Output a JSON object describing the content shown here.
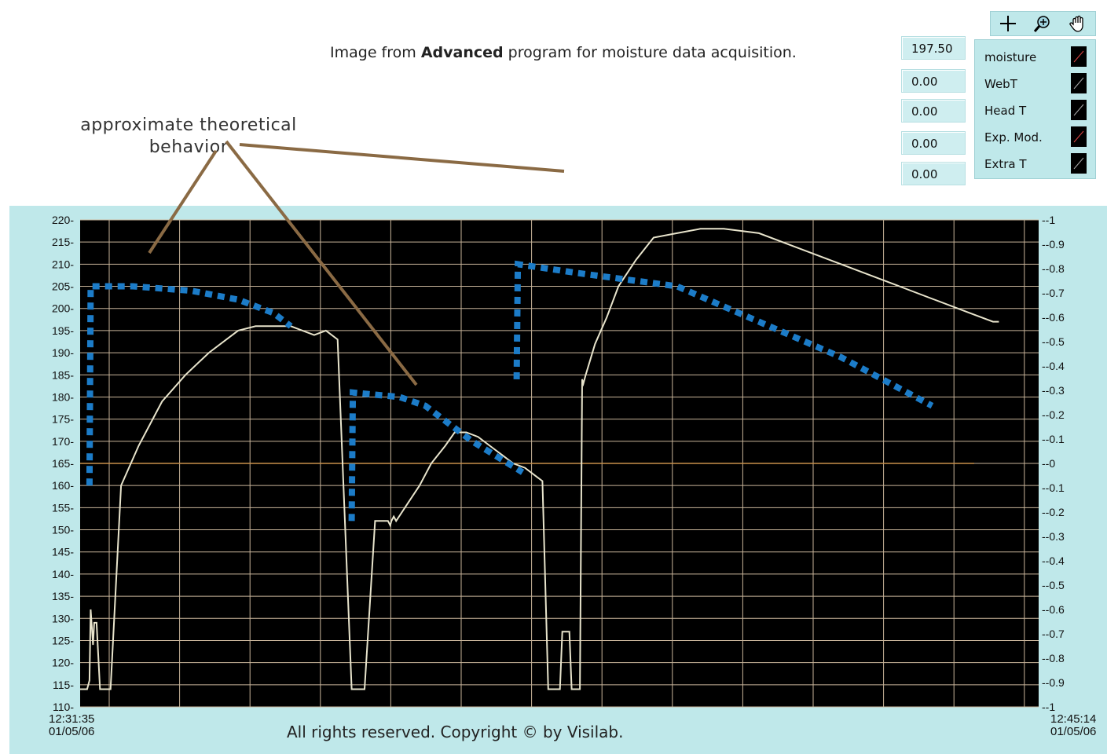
{
  "caption": {
    "prefix": "Image from ",
    "bold": "Advanced",
    "suffix": " program for moisture data acquisition."
  },
  "annotation": {
    "line1": "approximate  theoretical",
    "line2": "behavior"
  },
  "copyright": "All rights reserved. Copyright © by Visilab.",
  "readouts": [
    "197.50",
    "0.00",
    "0.00",
    "0.00",
    "0.00"
  ],
  "legend": [
    "moisture",
    "WebT",
    "Head T",
    "Exp. Mod.",
    "Extra T"
  ],
  "toolbar": {
    "tools": [
      "crosshair-icon",
      "zoom-icon",
      "hand-icon"
    ]
  },
  "colors": {
    "plot_bg": "#000000",
    "panel_bg": "#bfe8ea",
    "trace": "#e8e4cc",
    "grid": "#c8b49a",
    "zero_line": "#c8904a",
    "theory": "#1c7cc8",
    "leader": "#8a6a44"
  },
  "chart_data": {
    "type": "line",
    "x_start_label": [
      "12:31:35",
      "01/05/06"
    ],
    "x_end_label": [
      "12:45:14",
      "01/05/06"
    ],
    "x_range_seconds": [
      0,
      819
    ],
    "ylim": [
      110,
      220
    ],
    "y_ticks": [
      "220",
      "215",
      "210",
      "205",
      "200",
      "195",
      "190",
      "185",
      "180",
      "175",
      "170",
      "165",
      "160",
      "155",
      "150",
      "145",
      "140",
      "135",
      "130",
      "125",
      "120",
      "115",
      "110"
    ],
    "y2lim": [
      -1,
      1
    ],
    "y2_ticks": [
      "-1",
      "-0.9",
      "-0.8",
      "-0.7",
      "-0.6",
      "-0.5",
      "-0.4",
      "-0.3",
      "-0.2",
      "-0.1",
      "-0",
      "-0.1",
      "-0.2",
      "-0.3",
      "-0.4",
      "-0.5",
      "-0.6",
      "-0.7",
      "-0.8",
      "-0.9",
      "-1"
    ],
    "grid": true,
    "series": [
      {
        "name": "moisture",
        "x": [
          0,
          6,
          8,
          9,
          11,
          12,
          13,
          14,
          17,
          20,
          26,
          35,
          50,
          70,
          90,
          110,
          125,
          135,
          150,
          165,
          180,
          190,
          200,
          210,
          220,
          232,
          234,
          243,
          252,
          260,
          263,
          265,
          266,
          268,
          270,
          280,
          290,
          300,
          312,
          320,
          330,
          340,
          350,
          360,
          370,
          380,
          390,
          395,
          400,
          405,
          410,
          412,
          418,
          420,
          422,
          427,
          429,
          430,
          432,
          440,
          450,
          460,
          475,
          490,
          510,
          530,
          550,
          580,
          610,
          640,
          670,
          700,
          730,
          760,
          780,
          785
        ],
        "y": [
          114,
          114,
          116,
          132,
          124,
          129,
          129,
          129,
          114,
          114,
          114,
          160,
          169,
          179,
          185,
          190,
          193,
          195,
          196,
          196,
          196,
          195,
          194,
          195,
          193,
          114,
          114,
          114,
          152,
          152,
          152,
          151,
          152,
          153,
          152,
          156,
          160,
          165,
          169,
          172,
          172,
          171,
          169,
          167,
          165,
          164,
          162,
          161,
          114,
          114,
          114,
          127,
          127,
          114,
          114,
          114,
          184,
          183,
          185,
          192,
          198,
          205,
          211,
          216,
          217,
          218,
          218,
          217,
          214,
          211,
          208,
          205,
          202,
          199,
          197,
          197
        ]
      },
      {
        "name": "approximate theoretical behavior",
        "segments": [
          {
            "x": [
              8,
              9,
              45,
              95,
              135,
              165,
              180
            ],
            "y": [
              160,
              205,
              205,
              204,
              202,
              199,
              196
            ]
          },
          {
            "x": [
              232,
              233,
              273,
              295,
              335,
              378
            ],
            "y": [
              152,
              181,
              180,
              178,
              170,
              163
            ]
          },
          {
            "x": [
              373,
              374,
              425,
              510,
              650,
              728
            ],
            "y": [
              184,
              210,
              208,
              205,
              189,
              178
            ]
          }
        ]
      }
    ]
  }
}
